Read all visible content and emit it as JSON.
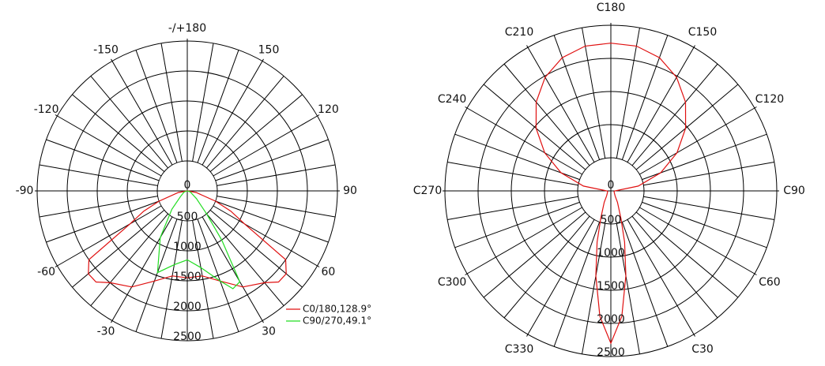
{
  "chart_data": [
    {
      "type": "polar",
      "rlim": [
        0,
        2500
      ],
      "rticks": [
        0,
        500,
        1000,
        1500,
        2000,
        2500
      ],
      "angle_ticks": [
        {
          "value": 180,
          "label": "-/+180"
        },
        150,
        120,
        90,
        60,
        30,
        -30,
        -60,
        -90,
        -120,
        -150
      ],
      "legend": "bottom-right",
      "series": [
        {
          "name": "C0/180,128.9°",
          "color": "#e01010",
          "x": [
            -90,
            -80,
            -70,
            -65,
            -60,
            -55,
            -50,
            -45,
            -40,
            -30,
            -20,
            -10,
            0,
            10,
            20,
            30,
            40,
            45,
            50,
            55,
            60,
            65,
            70,
            80,
            90
          ],
          "values": [
            0,
            150,
            500,
            800,
            1100,
            2000,
            2150,
            2150,
            2000,
            1850,
            1600,
            1440,
            1450,
            1440,
            1600,
            1850,
            2000,
            2150,
            2150,
            2000,
            1100,
            800,
            500,
            150,
            0
          ]
        },
        {
          "name": "C90/270,49.1°",
          "color": "#22dd22",
          "x": [
            -90,
            -70,
            -60,
            -50,
            -40,
            -30,
            -20,
            -10,
            0,
            10,
            20,
            25,
            30,
            35,
            40,
            50,
            60,
            70,
            90
          ],
          "values": [
            0,
            60,
            80,
            150,
            400,
            900,
            1450,
            1250,
            1150,
            1300,
            1600,
            1800,
            1750,
            1000,
            500,
            200,
            80,
            60,
            0
          ]
        }
      ]
    },
    {
      "type": "polar",
      "rlim": [
        0,
        2500
      ],
      "rticks": [
        0,
        500,
        1000,
        1500,
        2000,
        2500
      ],
      "angle_ticks": [
        {
          "value": 180,
          "label": "C180"
        },
        {
          "value": 150,
          "label": "C150"
        },
        {
          "value": 120,
          "label": "C120"
        },
        {
          "value": 90,
          "label": "C90"
        },
        {
          "value": 60,
          "label": "C60"
        },
        {
          "value": 30,
          "label": "C30"
        },
        {
          "value": 330,
          "label": "C330"
        },
        {
          "value": 300,
          "label": "C300"
        },
        {
          "value": 270,
          "label": "C270"
        },
        {
          "value": 240,
          "label": "C240"
        },
        {
          "value": 210,
          "label": "C210"
        }
      ],
      "series": [
        {
          "color": "#e01010",
          "x": [
            0,
            5,
            10,
            15,
            20,
            30,
            40,
            60,
            80,
            90,
            100,
            110,
            120,
            130,
            140,
            150,
            160,
            170,
            180,
            190,
            200,
            210,
            220,
            230,
            240,
            250,
            260,
            270,
            280,
            300,
            320,
            330,
            340,
            345,
            350,
            355
          ],
          "values": [
            2300,
            1900,
            1300,
            800,
            450,
            200,
            100,
            60,
            50,
            60,
            420,
            800,
            1150,
            1470,
            1750,
            1980,
            2140,
            2220,
            2230,
            2220,
            2140,
            1980,
            1750,
            1470,
            1150,
            800,
            420,
            60,
            50,
            60,
            100,
            200,
            450,
            800,
            1300,
            1900
          ]
        }
      ]
    }
  ]
}
